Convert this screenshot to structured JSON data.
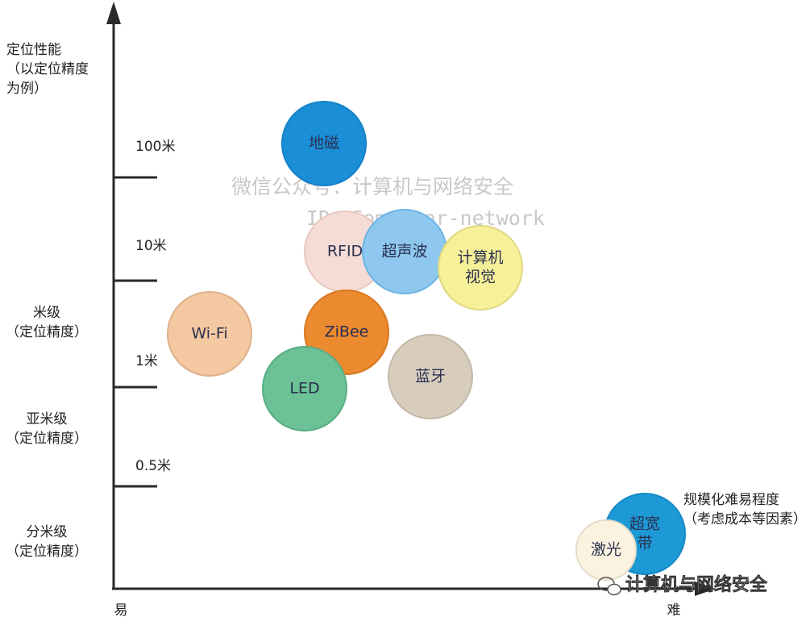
{
  "y_axis": {
    "title": [
      "定位性能",
      "（以定位精度",
      "为例）"
    ],
    "ticks": [
      "100米",
      "10米",
      "1米",
      "0.5米"
    ],
    "levels": [
      [
        "米级",
        "（定位精度）"
      ],
      [
        "亚米级",
        "（定位精度）"
      ],
      [
        "分米级",
        "（定位精度）"
      ]
    ]
  },
  "x_axis": {
    "start": "易",
    "end": "难",
    "title": [
      "规模化难易程度",
      "（考虑成本等因素）"
    ]
  },
  "nodes": [
    {
      "label": [
        "地磁"
      ]
    },
    {
      "label": [
        "RFID"
      ]
    },
    {
      "label": [
        "超声波"
      ]
    },
    {
      "label": [
        "计算机",
        "视觉"
      ]
    },
    {
      "label": [
        "Wi-Fi"
      ]
    },
    {
      "label": [
        "ZiBee"
      ]
    },
    {
      "label": [
        "LED"
      ]
    },
    {
      "label": [
        "蓝牙"
      ]
    },
    {
      "label": [
        "超宽",
        "带"
      ]
    },
    {
      "label": [
        "激光"
      ]
    }
  ],
  "watermark": [
    "微信公众号：计算机与网络安全",
    "ID：Computer-network"
  ],
  "footer": "计算机与网络安全"
}
